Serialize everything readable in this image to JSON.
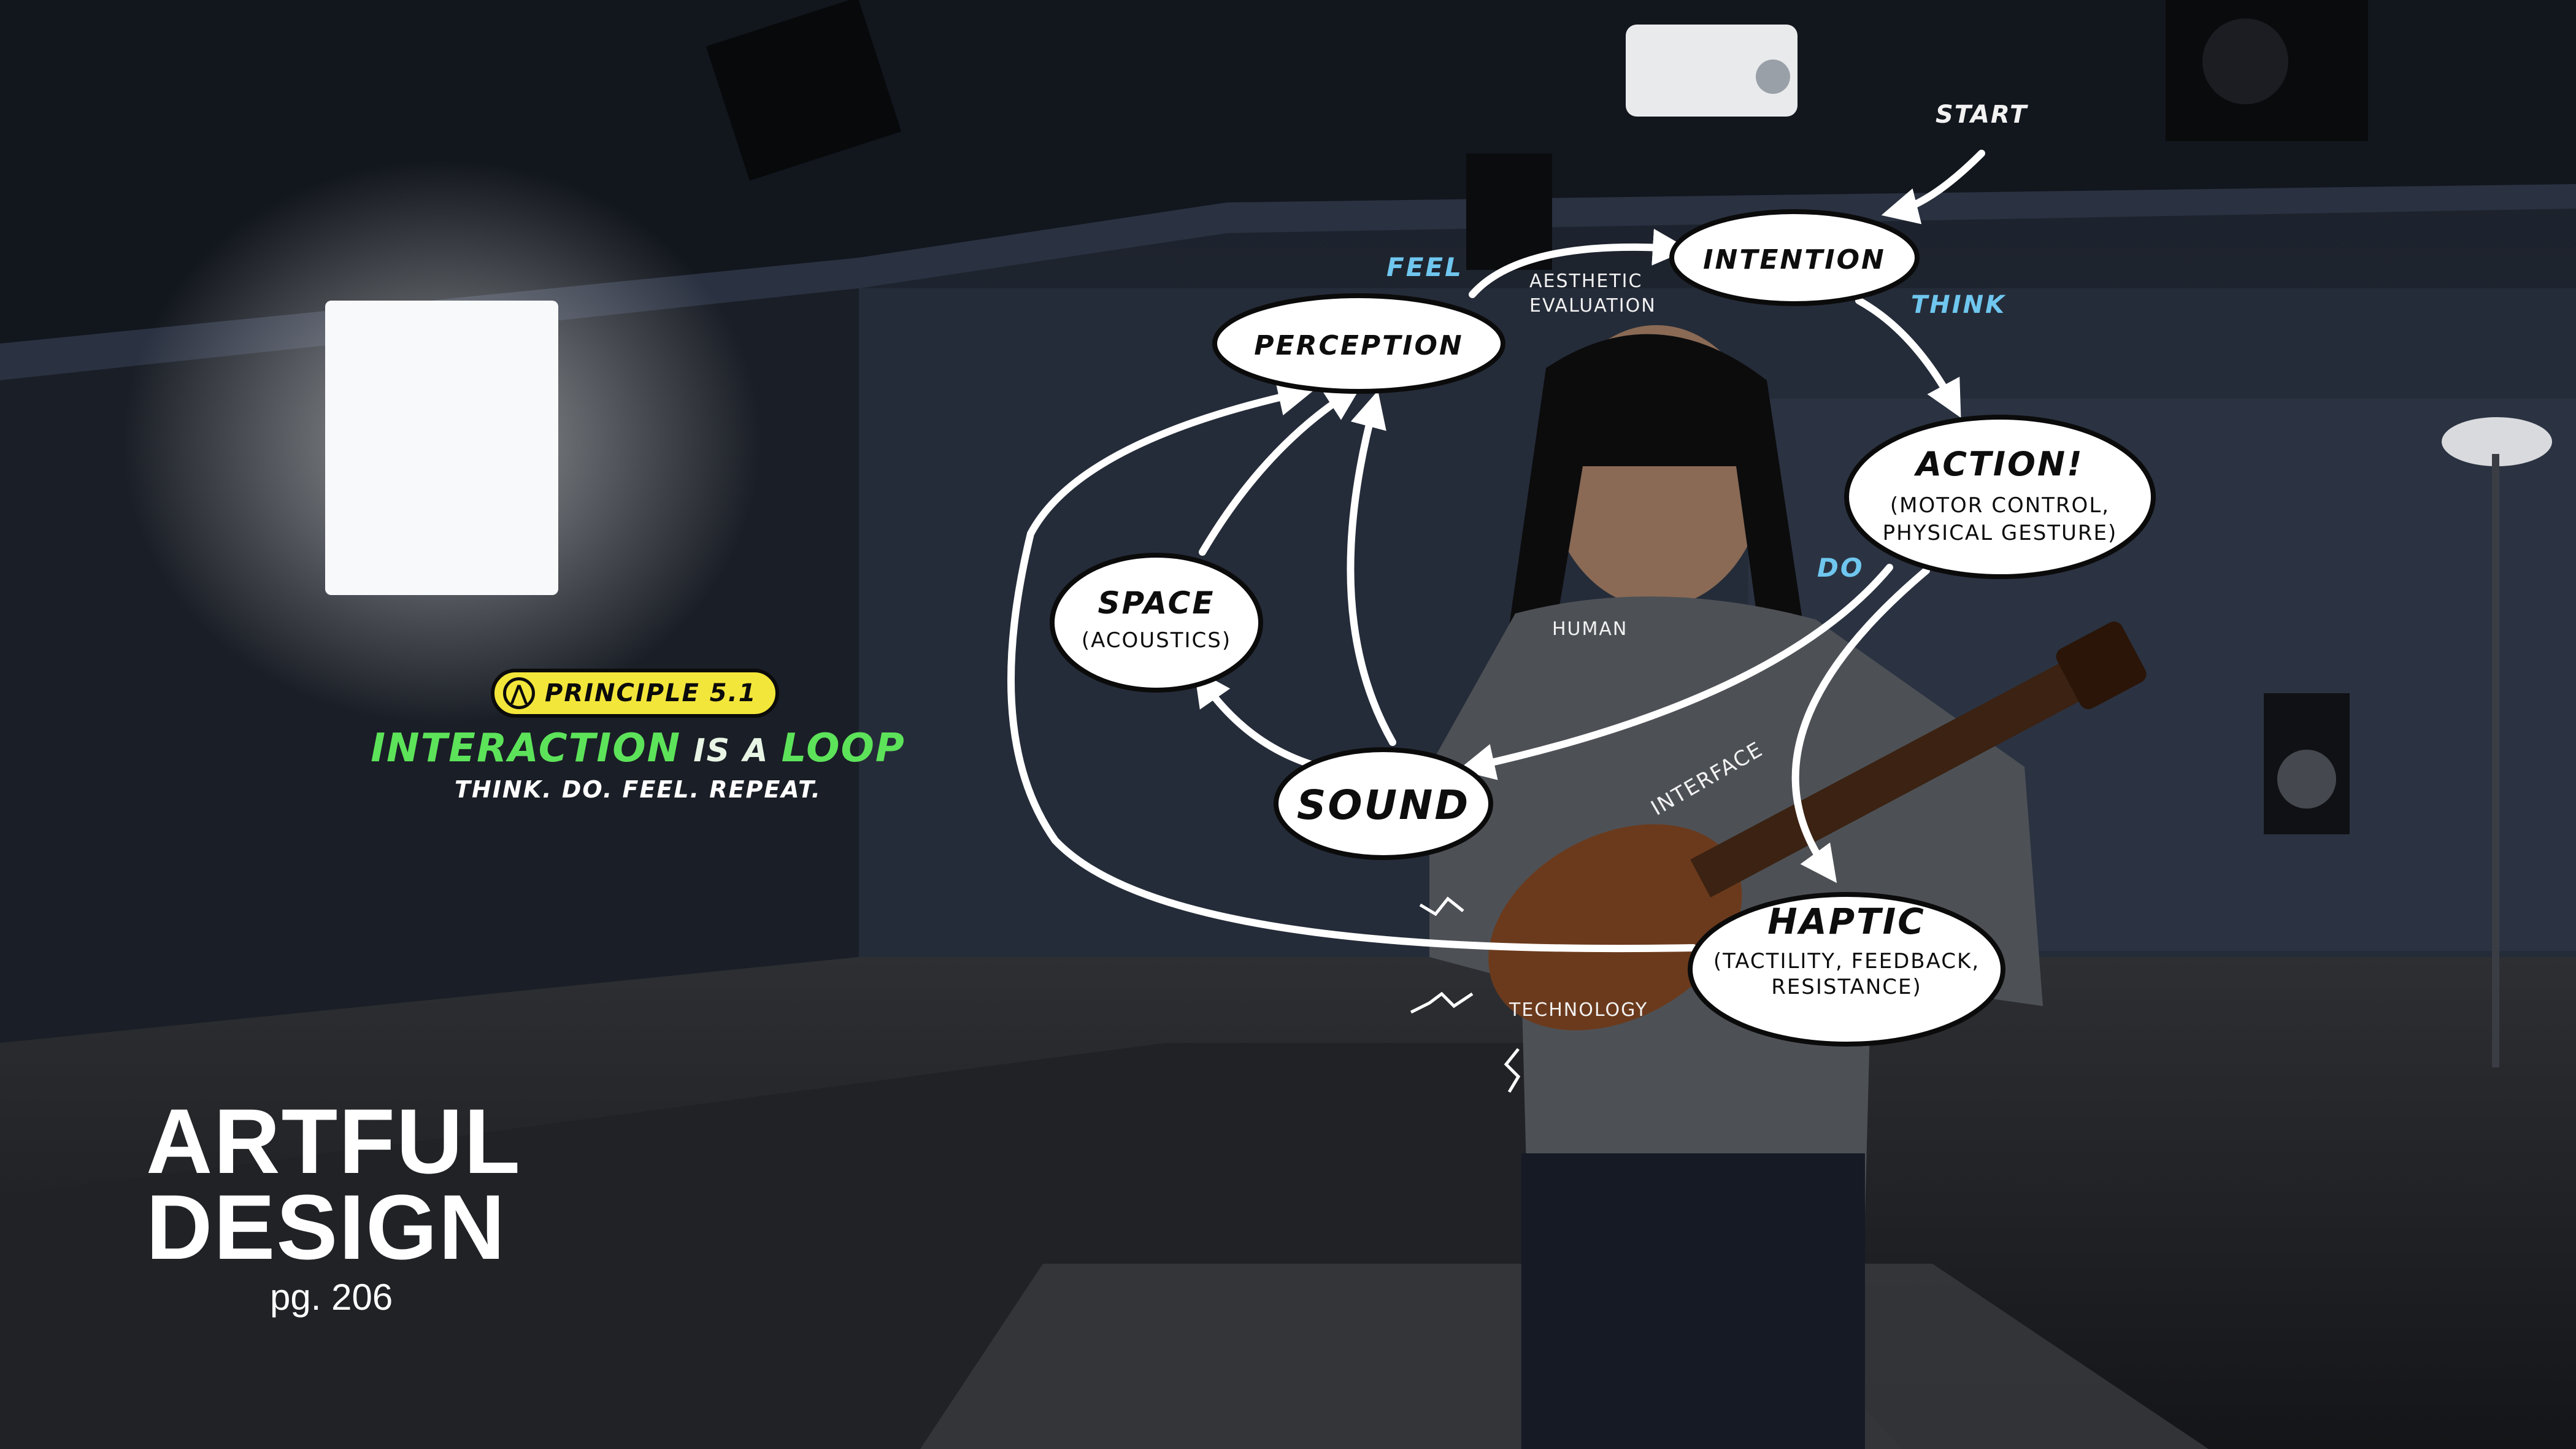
{
  "colors": {
    "background": "#1d222c",
    "node_fill": "#ffffff",
    "node_stroke": "#0b0b0b",
    "arrow": "#ffffff",
    "accent_blue": "#6fc6ee",
    "principle_badge": "#f3e63a",
    "loop_green": "#5de35a"
  },
  "diagram": {
    "start_label": "START",
    "nodes": {
      "intention": {
        "title": "INTENTION"
      },
      "perception": {
        "title": "PERCEPTION"
      },
      "action": {
        "title": "ACTION!",
        "sub1": "(MOTOR CONTROL,",
        "sub2": "PHYSICAL GESTURE)"
      },
      "space": {
        "title": "SPACE",
        "sub1": "(ACOUSTICS)"
      },
      "sound": {
        "title": "SOUND"
      },
      "haptic": {
        "title": "HAPTIC",
        "sub1": "(TACTILITY, FEEDBACK,",
        "sub2": "RESISTANCE)"
      }
    },
    "edge_labels": {
      "feel": "FEEL",
      "think": "THINK",
      "do": "DO",
      "aesthetic_1": "AESTHETIC",
      "aesthetic_2": "EVALUATION"
    },
    "layer_labels": {
      "human": "HUMAN",
      "interface": "INTERFACE",
      "technology": "TECHNOLOGY"
    }
  },
  "principle": {
    "badge": "PRINCIPLE 5.1",
    "headline_1": "INTERACTION",
    "headline_2": " IS A ",
    "headline_3": "LOOP",
    "tagline": "THINK. DO. FEEL. REPEAT."
  },
  "branding": {
    "line1": "ARTFUL",
    "line2": "DESIGN",
    "page": "pg. 206"
  }
}
